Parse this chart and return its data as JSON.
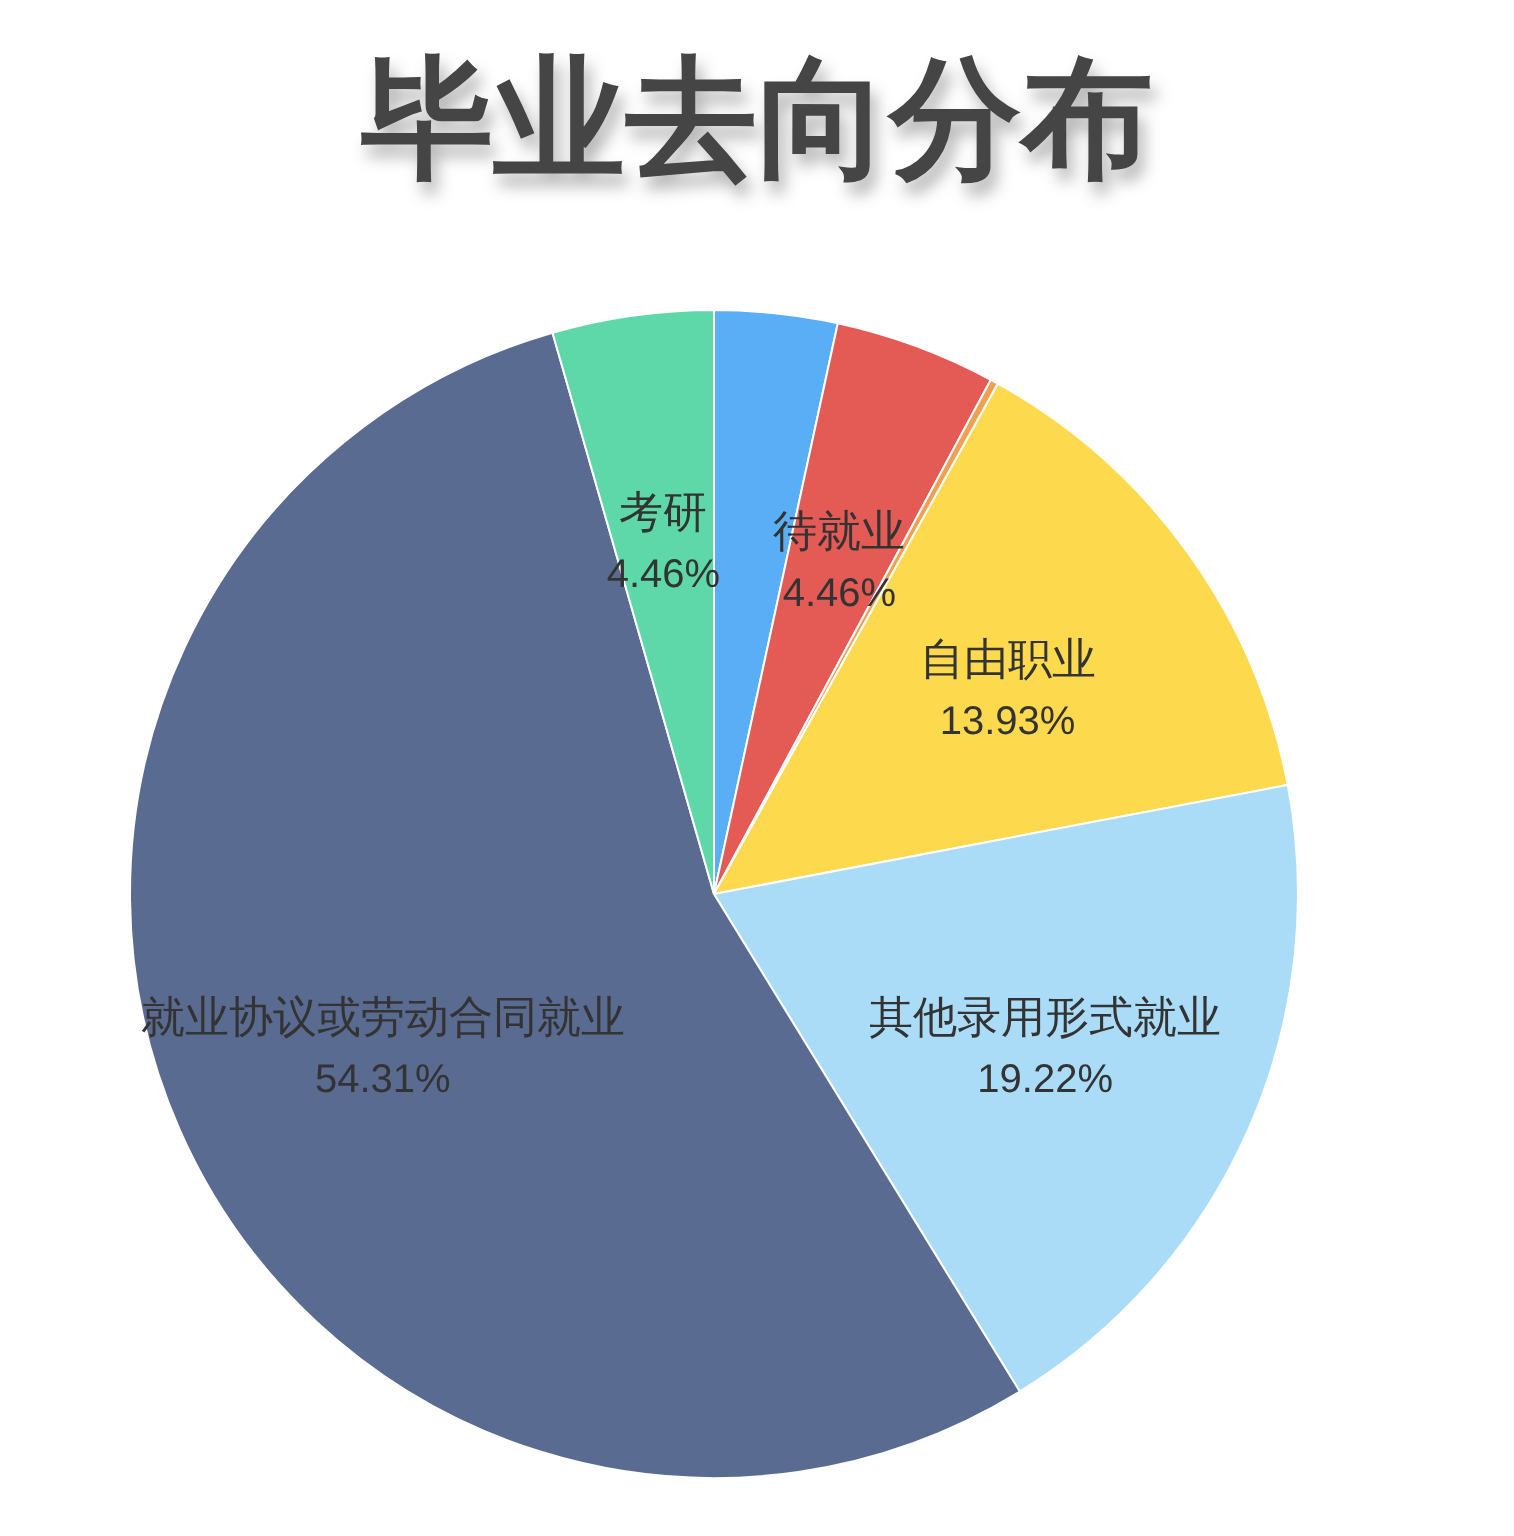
{
  "chart_data": {
    "type": "pie",
    "title": "毕业去向分布",
    "categories": [
      null,
      "待就业",
      null,
      "自由职业",
      "其他录用形式就业",
      "就业协议或劳动合同就业",
      "考研"
    ],
    "values": [
      3.4,
      4.46,
      0.22,
      13.93,
      19.22,
      54.31,
      4.46
    ],
    "value_labels": [
      null,
      "4.46%",
      null,
      "13.93%",
      "19.22%",
      "54.31%",
      "4.46%"
    ],
    "colors": [
      "#5aaef5",
      "#e45a55",
      "#f0a050",
      "#fdd94e",
      "#aadcf8",
      "#5a6b92",
      "#5ed8a8"
    ]
  }
}
